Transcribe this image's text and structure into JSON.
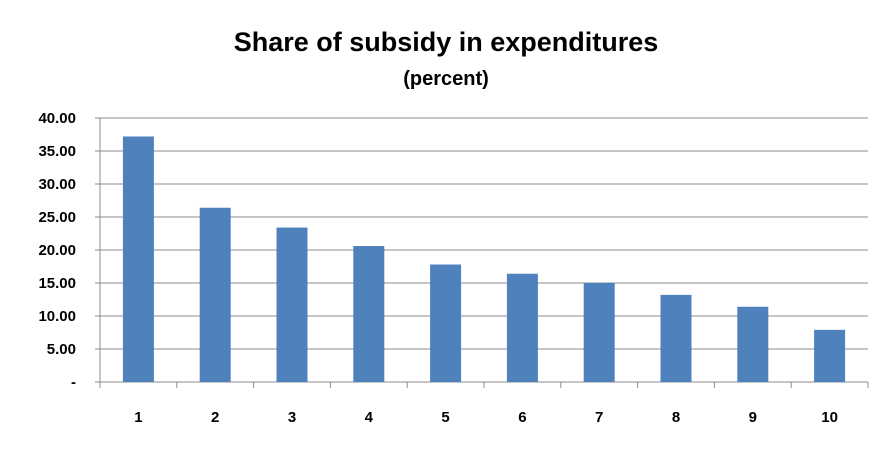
{
  "chart_data": {
    "type": "bar",
    "title": "Share of subsidy in expenditures",
    "subtitle": "(percent)",
    "xlabel": "",
    "ylabel": "",
    "categories": [
      "1",
      "2",
      "3",
      "4",
      "5",
      "6",
      "7",
      "8",
      "9",
      "10"
    ],
    "values": [
      37.2,
      26.4,
      23.4,
      20.6,
      17.8,
      16.4,
      15.0,
      13.2,
      11.4,
      7.9
    ],
    "ylim": [
      0,
      40
    ],
    "y_ticks": [
      0,
      5,
      10,
      15,
      20,
      25,
      30,
      35,
      40
    ],
    "y_tick_labels": [
      "-",
      "5.00",
      "10.00",
      "15.00",
      "20.00",
      "25.00",
      "30.00",
      "35.00",
      "40.00"
    ],
    "grid": true,
    "legend": "none",
    "bar_color": "#4f81bd",
    "grid_color": "#8c8c8c"
  }
}
